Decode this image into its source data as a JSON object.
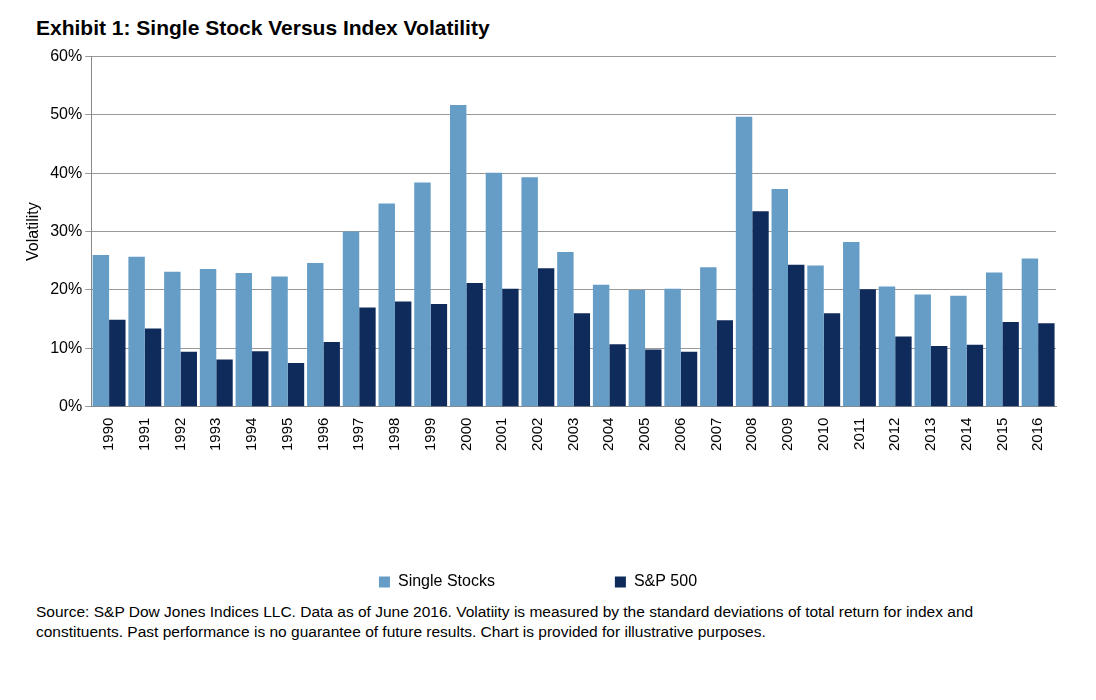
{
  "chart_data": {
    "type": "bar",
    "title": "Exhibit 1: Single Stock Versus Index Volatility",
    "y_label": "Volatility",
    "annotations": [
      "Source: S&P Dow Jones Indices LLC.  Data as of June 2016.  Volatiity is measured by the standard deviations of total return for index and constituents.  Past performance is no guarantee of future results. Chart is provided for illustrative purposes."
    ],
    "categories": [
      "1990",
      "1991",
      "1992",
      "1993",
      "1994",
      "1995",
      "1996",
      "1997",
      "1998",
      "1999",
      "2000",
      "2001",
      "2002",
      "2003",
      "2004",
      "2005",
      "2006",
      "2007",
      "2008",
      "2009",
      "2010",
      "2011",
      "2012",
      "2013",
      "2014",
      "2015",
      "2016"
    ],
    "series": [
      {
        "name": "Single Stocks",
        "color": "#659dc6",
        "values": [
          26.0,
          25.7,
          23.1,
          23.6,
          22.9,
          22.3,
          24.6,
          30.0,
          34.8,
          38.4,
          51.7,
          40.1,
          39.3,
          26.5,
          20.9,
          20.0,
          20.2,
          23.9,
          49.7,
          37.3,
          24.2,
          28.2,
          20.6,
          19.2,
          19.0,
          23.0,
          25.4
        ]
      },
      {
        "name": "S&P 500",
        "color": "#0f2b5b",
        "values": [
          14.9,
          13.4,
          9.4,
          8.1,
          9.5,
          7.5,
          11.1,
          17.0,
          18.0,
          17.6,
          21.2,
          20.2,
          23.7,
          16.0,
          10.7,
          9.8,
          9.4,
          14.8,
          33.5,
          24.3,
          16.0,
          20.1,
          12.0,
          10.4,
          10.6,
          14.5,
          14.3
        ]
      }
    ],
    "ylim": [
      0,
      60
    ],
    "yticks": [
      {
        "value": 0,
        "label": "0%"
      },
      {
        "value": 10,
        "label": "10%"
      },
      {
        "value": 20,
        "label": "20%"
      },
      {
        "value": 30,
        "label": "30%"
      },
      {
        "value": 40,
        "label": "40%"
      },
      {
        "value": 50,
        "label": "50%"
      },
      {
        "value": 60,
        "label": "60%"
      }
    ],
    "grid": true,
    "legend": "bottom"
  }
}
